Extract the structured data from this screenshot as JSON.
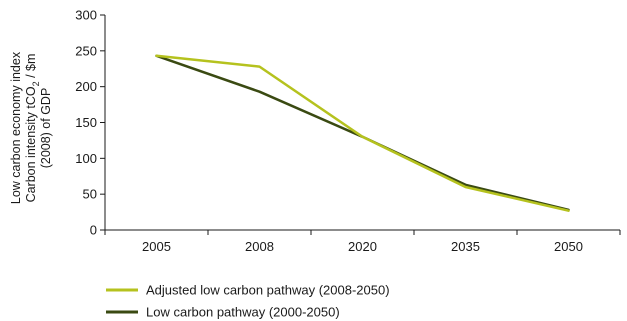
{
  "chart_data": {
    "type": "line",
    "categories": [
      "2005",
      "2008",
      "2020",
      "2035",
      "2050"
    ],
    "ylim": [
      0,
      300
    ],
    "yticks": [
      0,
      50,
      100,
      150,
      200,
      250,
      300
    ],
    "ylabel_lines": [
      "Low carbon economy index",
      "Carbon intensity tCO",
      "(2008) of GDP"
    ],
    "ylabel_line2_tail": " / $m",
    "ylabel_subscript": "2",
    "xlabel": "",
    "grid": false,
    "legend_position": "bottom-left",
    "series": [
      {
        "name": "Adjusted low carbon pathway (2008-2050)",
        "color": "#b5c21e",
        "values": [
          243,
          228,
          130,
          60,
          27
        ]
      },
      {
        "name": "Low carbon pathway (2000-2050)",
        "color": "#3a4a12",
        "values": [
          243,
          193,
          130,
          63,
          28
        ]
      }
    ]
  }
}
